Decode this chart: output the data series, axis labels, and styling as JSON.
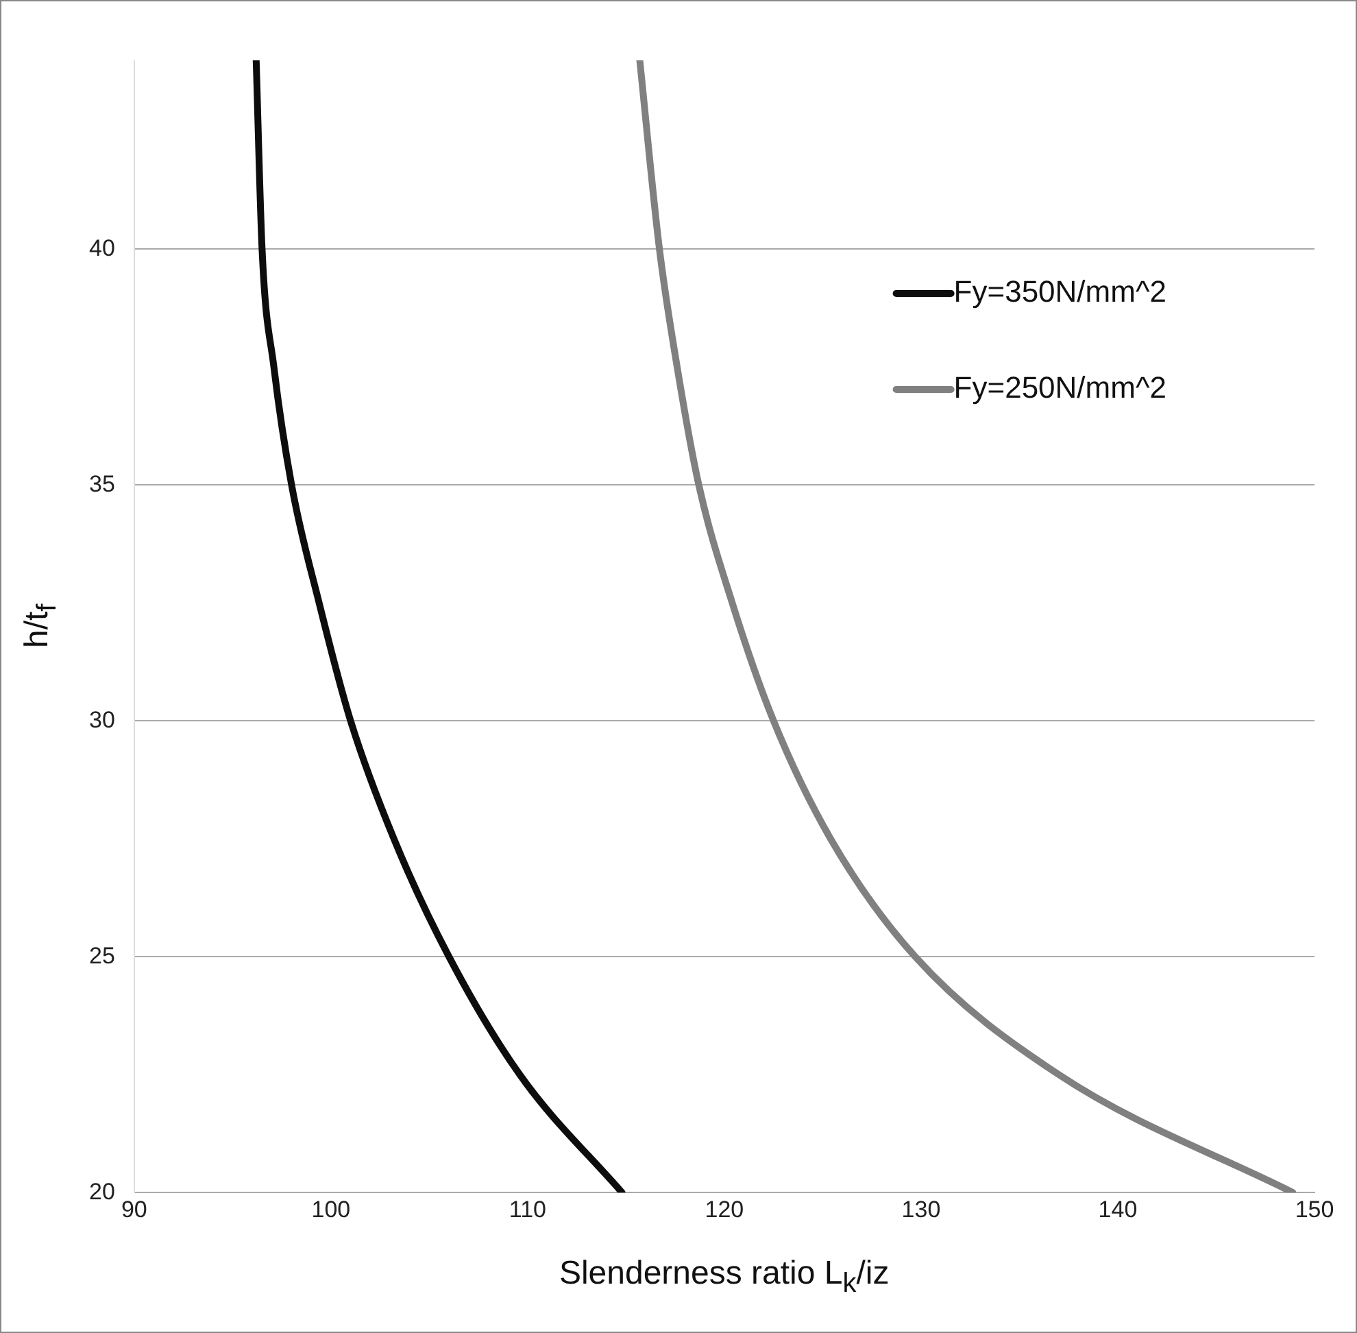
{
  "chart_data": {
    "type": "line",
    "xlabel": "Slenderness ratio L$_{k}$/iz",
    "ylabel": "h/t$_{f}$",
    "xlim": [
      90,
      150
    ],
    "xticks": [
      90,
      100,
      110,
      120,
      130,
      140,
      150
    ],
    "ylim": [
      20,
      44
    ],
    "yticks": [
      20,
      25,
      30,
      35,
      40
    ],
    "grid": "y",
    "legend": "top right",
    "marker": "none",
    "line_style": "solid",
    "series": [
      {
        "name": "Fy=350N/mm^2",
        "color": "#0d0d0d",
        "x": [
          96.2,
          96.5,
          97.1,
          98.0,
          99.4,
          101.0,
          103.2,
          106.0,
          109.6,
          114.8
        ],
        "values": [
          44,
          40,
          37.5,
          35,
          32.5,
          30,
          27.5,
          25,
          22.5,
          20
        ]
      },
      {
        "name": "Fy=250N/mm^2",
        "color": "#808080",
        "x": [
          115.7,
          116.7,
          117.6,
          118.7,
          120.4,
          122.5,
          125.4,
          129.7,
          137.0,
          148.9
        ],
        "values": [
          44,
          40,
          37.5,
          35,
          32.5,
          30,
          27.5,
          25,
          22.5,
          20
        ]
      }
    ]
  }
}
